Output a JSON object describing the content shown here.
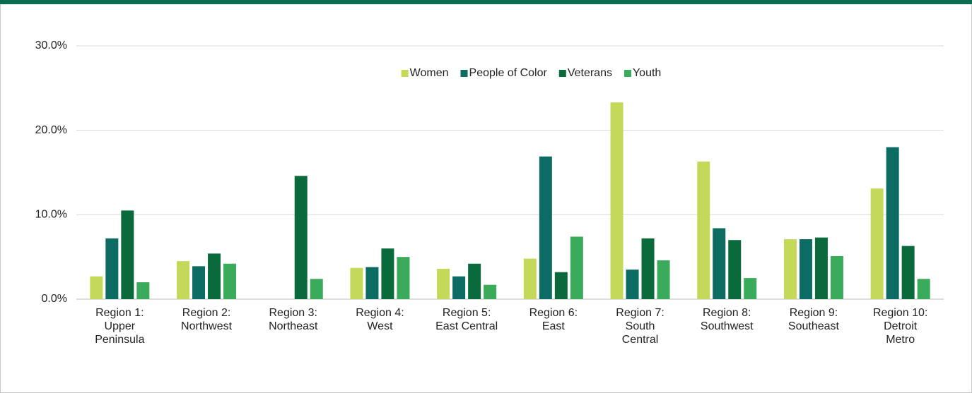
{
  "chart_data": {
    "type": "bar",
    "categories": [
      [
        "Region 1:",
        "Upper",
        "Peninsula"
      ],
      [
        "Region 2:",
        "Northwest"
      ],
      [
        "Region 3:",
        "Northeast"
      ],
      [
        "Region 4:",
        "West"
      ],
      [
        "Region 5:",
        "East Central"
      ],
      [
        "Region 6:",
        "East"
      ],
      [
        "Region 7:",
        "South",
        "Central"
      ],
      [
        "Region 8:",
        "Southwest"
      ],
      [
        "Region 9:",
        "Southeast"
      ],
      [
        "Region 10:",
        "Detroit",
        "Metro"
      ]
    ],
    "series": [
      {
        "name": "Women",
        "color": "#c4d85a",
        "values": [
          2.7,
          4.5,
          0,
          3.7,
          3.6,
          4.8,
          23.3,
          16.3,
          7.1,
          13.1
        ]
      },
      {
        "name": "People of Color",
        "color": "#0c6c63",
        "values": [
          7.2,
          3.9,
          0,
          3.8,
          2.7,
          16.9,
          3.5,
          8.4,
          7.1,
          18.0
        ]
      },
      {
        "name": "Veterans",
        "color": "#0a6a3b",
        "values": [
          10.5,
          5.4,
          14.6,
          6.0,
          4.2,
          3.2,
          7.2,
          7.0,
          7.3,
          6.3
        ]
      },
      {
        "name": "Youth",
        "color": "#3aaa5b",
        "values": [
          2.0,
          4.2,
          2.4,
          5.0,
          1.7,
          7.4,
          4.6,
          2.5,
          5.1,
          2.4
        ]
      }
    ],
    "ylim": [
      0,
      30
    ],
    "yticks": [
      {
        "value": 0,
        "label": "0.0%"
      },
      {
        "value": 10,
        "label": "10.0%"
      },
      {
        "value": 20,
        "label": "20.0%"
      },
      {
        "value": 30,
        "label": "30.0%"
      }
    ],
    "grid": true,
    "legend": "top"
  }
}
